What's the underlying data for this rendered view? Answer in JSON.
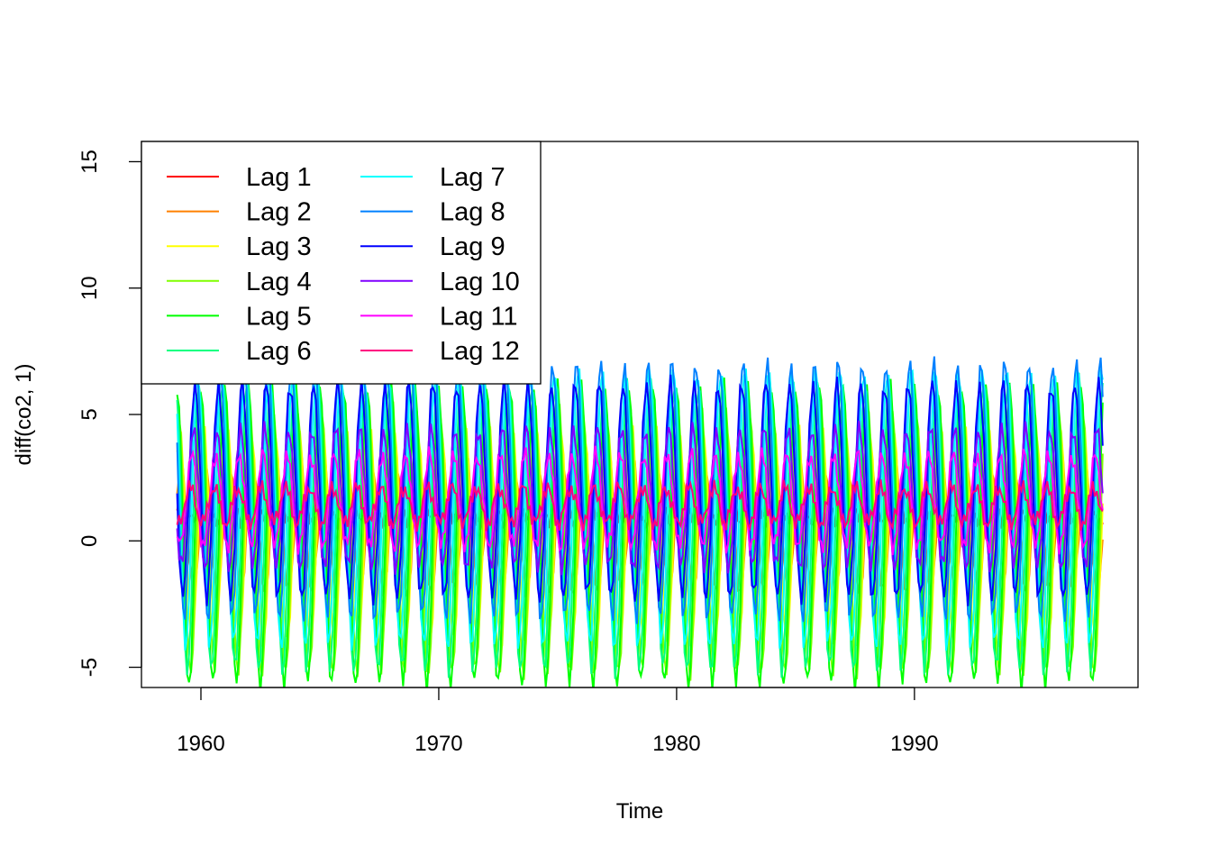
{
  "chart_data": {
    "type": "line",
    "title": "",
    "xlabel": "Time",
    "ylabel": "diff(co2, 1)",
    "xlim": [
      1957.5,
      1999.4
    ],
    "ylim": [
      -5.8,
      15.8
    ],
    "x_start": 1959.0,
    "x_end": 1997.9,
    "x_ticks": [
      1960,
      1970,
      1980,
      1990
    ],
    "y_ticks": [
      -5,
      0,
      5,
      10,
      15
    ],
    "grid": false,
    "legend_position": "top-left",
    "series": [
      {
        "name": "Lag 1",
        "color": "#FF0000",
        "mean": 1.2,
        "amplitude": 0.45,
        "phase": 0.0
      },
      {
        "name": "Lag 2",
        "color": "#FF8000",
        "mean": 0.5,
        "amplitude": 2.6,
        "phase": 0.4
      },
      {
        "name": "Lag 3",
        "color": "#FFFF00",
        "mean": 0.2,
        "amplitude": 4.2,
        "phase": 0.8
      },
      {
        "name": "Lag 4",
        "color": "#80FF00",
        "mean": 0.0,
        "amplitude": 5.2,
        "phase": 1.2
      },
      {
        "name": "Lag 5",
        "color": "#00FF00",
        "mean": 0.2,
        "amplitude": 5.9,
        "phase": 1.6
      },
      {
        "name": "Lag 6",
        "color": "#00FF80",
        "mean": 0.6,
        "amplitude": 5.7,
        "phase": 2.0
      },
      {
        "name": "Lag 7",
        "color": "#00FFFF",
        "mean": 1.3,
        "amplitude": 5.4,
        "phase": 2.4
      },
      {
        "name": "Lag 8",
        "color": "#0080FF",
        "mean": 2.0,
        "amplitude": 5.0,
        "phase": 2.8
      },
      {
        "name": "Lag 9",
        "color": "#0000FF",
        "mean": 2.0,
        "amplitude": 4.2,
        "phase": 3.2
      },
      {
        "name": "Lag 10",
        "color": "#8000FF",
        "mean": 1.7,
        "amplitude": 2.7,
        "phase": 3.6
      },
      {
        "name": "Lag 11",
        "color": "#FF00FF",
        "mean": 1.6,
        "amplitude": 1.8,
        "phase": 4.0
      },
      {
        "name": "Lag 12",
        "color": "#FF0080",
        "mean": 1.4,
        "amplitude": 0.7,
        "phase": 4.4
      }
    ]
  }
}
